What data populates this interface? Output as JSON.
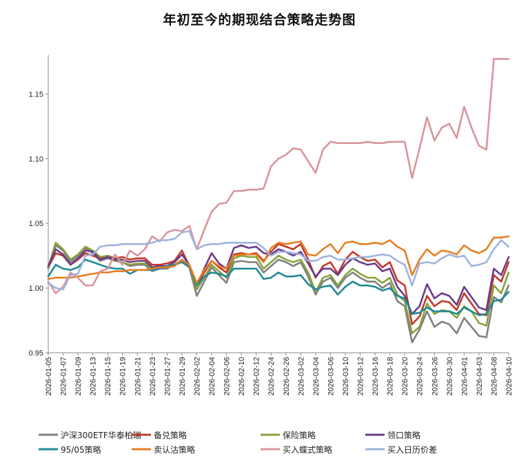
{
  "chart_data": {
    "type": "line",
    "title": "年初至今的期现结合策略走势图",
    "xlabel": "",
    "ylabel": "",
    "ylim": [
      0.95,
      1.18
    ],
    "y_ticks": [
      "0.95",
      "1.00",
      "1.05",
      "1.10",
      "1.15"
    ],
    "y_tick_values": [
      0.95,
      1.0,
      1.05,
      1.1,
      1.15
    ],
    "grid": false,
    "legend_position": "bottom",
    "x": [
      "2026-01-05",
      "2026-01-06",
      "2026-01-07",
      "2026-01-08",
      "2026-01-09",
      "2026-01-12",
      "2026-01-13",
      "2026-01-14",
      "2026-01-15",
      "2026-01-16",
      "2026-01-19",
      "2026-01-20",
      "2026-01-21",
      "2026-01-22",
      "2026-01-23",
      "2026-01-26",
      "2026-01-27",
      "2026-01-28",
      "2026-01-29",
      "2026-01-30",
      "2026-02-02",
      "2026-02-03",
      "2026-02-04",
      "2026-02-05",
      "2026-02-06",
      "2026-02-09",
      "2026-02-10",
      "2026-02-11",
      "2026-02-12",
      "2026-02-13",
      "2026-02-24",
      "2026-02-25",
      "2026-02-26",
      "2026-02-27",
      "2026-03-02",
      "2026-03-03",
      "2026-03-04",
      "2026-03-05",
      "2026-03-06",
      "2026-03-09",
      "2026-03-10",
      "2026-03-11",
      "2026-03-12",
      "2026-03-13",
      "2026-03-16",
      "2026-03-17",
      "2026-03-18",
      "2026-03-19",
      "2026-03-20",
      "2026-03-23",
      "2026-03-24",
      "2026-03-25",
      "2026-03-26",
      "2026-03-27",
      "2026-03-30",
      "2026-03-31",
      "2026-04-01",
      "2026-04-02",
      "2026-04-03",
      "2026-04-07",
      "2026-04-08",
      "2026-04-09",
      "2026-04-10"
    ],
    "x_tick_labels": [
      "2026-01-05",
      "2026-01-07",
      "2026-01-09",
      "2026-01-13",
      "2026-01-15",
      "2026-01-19",
      "2026-01-21",
      "2026-01-23",
      "2026-01-27",
      "2026-01-29",
      "2026-02-02",
      "2026-02-04",
      "2026-02-06",
      "2026-02-10",
      "2026-02-12",
      "2026-02-24",
      "2026-02-26",
      "2026-03-02",
      "2026-03-04",
      "2026-03-06",
      "2026-03-10",
      "2026-03-12",
      "2026-03-16",
      "2026-03-18",
      "2026-03-20",
      "2026-03-24",
      "2026-03-26",
      "2026-03-30",
      "2026-04-01",
      "2026-04-03",
      "2026-04-08",
      "2026-04-10"
    ],
    "series": [
      {
        "name": "沪深300ETF华泰柏瑞",
        "color": "#7f7f7f",
        "values": [
          1.015,
          1.033,
          1.029,
          1.02,
          1.025,
          1.031,
          1.027,
          1.021,
          1.023,
          1.021,
          1.02,
          1.017,
          1.018,
          1.018,
          1.013,
          1.015,
          1.015,
          1.018,
          1.02,
          1.016,
          0.994,
          1.005,
          1.016,
          1.01,
          1.004,
          1.02,
          1.021,
          1.02,
          1.02,
          1.012,
          1.017,
          1.022,
          1.02,
          1.017,
          1.02,
          1.009,
          0.995,
          1.005,
          1.008,
          1.0,
          1.008,
          1.012,
          1.008,
          1.005,
          1.005,
          1.0,
          1.004,
          0.99,
          0.986,
          0.958,
          0.968,
          0.982,
          0.97,
          0.974,
          0.972,
          0.965,
          0.977,
          0.97,
          0.963,
          0.962,
          0.993,
          0.989,
          1.002
        ]
      },
      {
        "name": "备兑策略",
        "color": "#c0392b",
        "values": [
          1.016,
          1.027,
          1.025,
          1.018,
          1.022,
          1.027,
          1.025,
          1.023,
          1.025,
          1.023,
          1.024,
          1.022,
          1.023,
          1.023,
          1.018,
          1.018,
          1.019,
          1.021,
          1.029,
          1.017,
          1.002,
          1.012,
          1.021,
          1.016,
          1.012,
          1.026,
          1.027,
          1.026,
          1.027,
          1.021,
          1.028,
          1.034,
          1.032,
          1.03,
          1.034,
          1.022,
          1.008,
          1.017,
          1.02,
          1.011,
          1.022,
          1.028,
          1.024,
          1.021,
          1.022,
          1.016,
          1.02,
          1.006,
          1.002,
          0.972,
          0.978,
          0.994,
          0.986,
          0.99,
          0.989,
          0.983,
          0.996,
          0.988,
          0.98,
          0.979,
          1.01,
          1.005,
          1.02
        ]
      },
      {
        "name": "保险策略",
        "color": "#86a23b",
        "values": [
          1.016,
          1.035,
          1.03,
          1.022,
          1.026,
          1.032,
          1.029,
          1.024,
          1.025,
          1.022,
          1.02,
          1.018,
          1.019,
          1.019,
          1.015,
          1.016,
          1.016,
          1.018,
          1.022,
          1.017,
          0.999,
          1.008,
          1.018,
          1.013,
          1.008,
          1.023,
          1.025,
          1.024,
          1.024,
          1.015,
          1.02,
          1.025,
          1.022,
          1.02,
          1.022,
          1.012,
          0.997,
          1.008,
          1.01,
          1.002,
          1.01,
          1.015,
          1.011,
          1.008,
          1.008,
          1.004,
          1.008,
          0.995,
          0.99,
          0.965,
          0.97,
          0.988,
          0.98,
          0.983,
          0.982,
          0.977,
          0.986,
          0.982,
          0.973,
          0.971,
          1.002,
          0.996,
          1.012
        ]
      },
      {
        "name": "领口策略",
        "color": "#6b3b8a",
        "values": [
          1.017,
          1.03,
          1.026,
          1.018,
          1.023,
          1.029,
          1.028,
          1.022,
          1.024,
          1.022,
          1.022,
          1.02,
          1.021,
          1.021,
          1.016,
          1.017,
          1.017,
          1.02,
          1.026,
          1.018,
          1.002,
          1.015,
          1.027,
          1.019,
          1.015,
          1.031,
          1.033,
          1.031,
          1.032,
          1.027,
          1.026,
          1.03,
          1.028,
          1.025,
          1.028,
          1.019,
          1.009,
          1.015,
          1.015,
          1.01,
          1.018,
          1.023,
          1.02,
          1.018,
          1.019,
          1.013,
          1.015,
          1.001,
          0.994,
          0.98,
          0.986,
          1.003,
          0.992,
          0.996,
          0.994,
          0.987,
          1.001,
          0.993,
          0.985,
          0.983,
          1.015,
          1.01,
          1.024
        ]
      },
      {
        "name": "95/05策略",
        "color": "#1f8a94",
        "values": [
          1.009,
          1.018,
          1.015,
          1.014,
          1.016,
          1.022,
          1.02,
          1.018,
          1.016,
          1.015,
          1.015,
          1.011,
          1.014,
          1.014,
          1.014,
          1.015,
          1.017,
          1.018,
          1.02,
          1.017,
          1.002,
          1.009,
          1.012,
          1.011,
          1.009,
          1.015,
          1.015,
          1.015,
          1.015,
          1.007,
          1.008,
          1.012,
          1.009,
          1.009,
          1.01,
          1.003,
          0.999,
          1.001,
          1.002,
          0.995,
          1.001,
          1.005,
          1.002,
          1.002,
          1.001,
          0.998,
          1.0,
          0.994,
          0.992,
          0.98,
          0.981,
          0.985,
          0.982,
          0.982,
          0.982,
          0.98,
          0.985,
          0.982,
          0.979,
          0.98,
          0.99,
          0.991,
          0.997
        ]
      },
      {
        "name": "卖认沽策略",
        "color": "#e67e22",
        "values": [
          1.007,
          1.008,
          1.008,
          1.008,
          1.009,
          1.01,
          1.011,
          1.012,
          1.012,
          1.013,
          1.013,
          1.014,
          1.014,
          1.014,
          1.015,
          1.016,
          1.016,
          1.017,
          1.022,
          1.018,
          1.004,
          1.014,
          1.021,
          1.017,
          1.015,
          1.025,
          1.026,
          1.026,
          1.026,
          1.02,
          1.031,
          1.035,
          1.034,
          1.035,
          1.036,
          1.026,
          1.025,
          1.03,
          1.034,
          1.027,
          1.035,
          1.036,
          1.034,
          1.034,
          1.035,
          1.034,
          1.037,
          1.032,
          1.029,
          1.01,
          1.022,
          1.03,
          1.025,
          1.029,
          1.028,
          1.026,
          1.033,
          1.029,
          1.027,
          1.03,
          1.039,
          1.039,
          1.04
        ]
      },
      {
        "name": "买入蝶式策略",
        "color": "#d9959a",
        "values": [
          1.005,
          0.996,
          1.001,
          1.012,
          1.008,
          1.002,
          1.002,
          1.013,
          1.015,
          1.026,
          1.018,
          1.029,
          1.025,
          1.03,
          1.04,
          1.036,
          1.043,
          1.045,
          1.044,
          1.048,
          1.03,
          1.045,
          1.059,
          1.065,
          1.066,
          1.075,
          1.075,
          1.076,
          1.076,
          1.077,
          1.094,
          1.1,
          1.103,
          1.108,
          1.107,
          1.098,
          1.089,
          1.107,
          1.113,
          1.112,
          1.112,
          1.112,
          1.112,
          1.113,
          1.112,
          1.112,
          1.113,
          1.113,
          1.113,
          1.085,
          1.108,
          1.132,
          1.114,
          1.124,
          1.127,
          1.116,
          1.14,
          1.124,
          1.11,
          1.107,
          1.177,
          1.177,
          1.177
        ]
      },
      {
        "name": "买入日历价差",
        "color": "#9fb3dd",
        "values": [
          1.004,
          1.0,
          0.999,
          1.01,
          1.011,
          1.025,
          1.026,
          1.032,
          1.033,
          1.033,
          1.034,
          1.034,
          1.034,
          1.034,
          1.035,
          1.037,
          1.037,
          1.038,
          1.043,
          1.044,
          1.03,
          1.033,
          1.034,
          1.034,
          1.035,
          1.035,
          1.035,
          1.035,
          1.035,
          1.031,
          1.025,
          1.028,
          1.028,
          1.027,
          1.026,
          1.021,
          1.021,
          1.024,
          1.025,
          1.022,
          1.022,
          1.023,
          1.024,
          1.024,
          1.025,
          1.026,
          1.025,
          1.021,
          1.018,
          1.002,
          1.019,
          1.02,
          1.019,
          1.023,
          1.026,
          1.024,
          1.025,
          1.017,
          1.018,
          1.02,
          1.03,
          1.037,
          1.032
        ]
      }
    ]
  }
}
